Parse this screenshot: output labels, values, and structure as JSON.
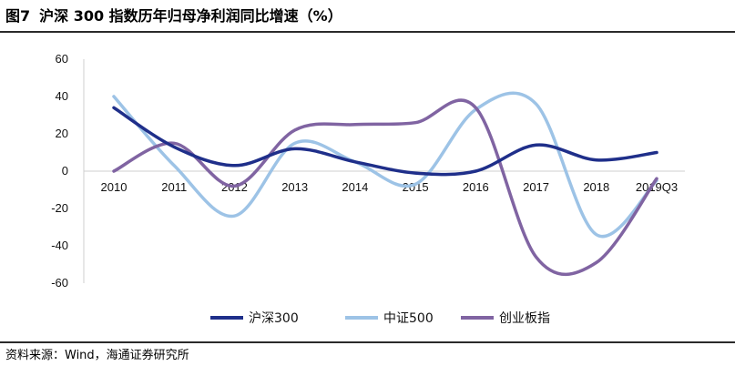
{
  "header": {
    "figure_label": "图7",
    "title": "沪深 300 指数历年归母净利润同比增速（%）"
  },
  "footer": {
    "source": "资料来源：Wind，海通证券研究所"
  },
  "chart_data": {
    "type": "line",
    "title": "沪深 300 指数历年归母净利润同比增速（%）",
    "xlabel": "",
    "ylabel": "",
    "categories": [
      "2010",
      "2011",
      "2012",
      "2013",
      "2014",
      "2015",
      "2016",
      "2017",
      "2018",
      "2019Q3"
    ],
    "ylim": [
      -60,
      60
    ],
    "yticks": [
      60,
      40,
      20,
      0,
      -20,
      -40,
      -60
    ],
    "grid": false,
    "smooth": true,
    "legend_position": "bottom",
    "series": [
      {
        "name": "沪深300",
        "color": "#1f2f8a",
        "values": [
          34,
          13,
          3,
          12,
          5,
          -1,
          0,
          14,
          6,
          10
        ]
      },
      {
        "name": "中证500",
        "color": "#9dc3e6",
        "values": [
          40,
          3,
          -24,
          15,
          5,
          -7,
          33,
          36,
          -34,
          -5
        ]
      },
      {
        "name": "创业板指",
        "color": "#8064a2",
        "values": [
          0,
          15,
          -8,
          22,
          25,
          26,
          34,
          -46,
          -49,
          -4
        ]
      }
    ]
  }
}
